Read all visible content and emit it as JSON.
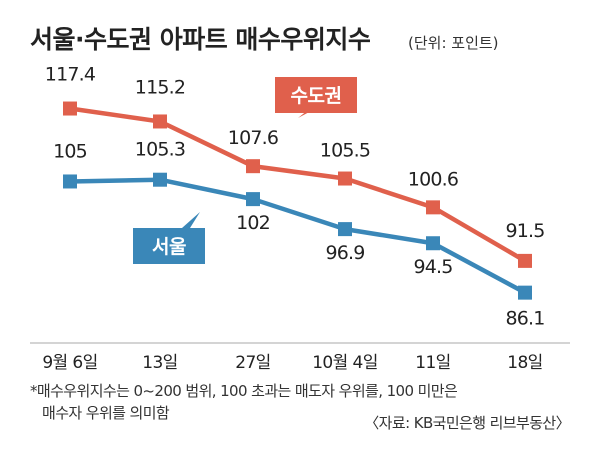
{
  "title": "서울·수도권 아파트 매수우위지수",
  "unit": "(단위: 포인트)",
  "chart_data": {
    "type": "line",
    "categories": [
      "9월 6일",
      "13일",
      "27일",
      "10월 4일",
      "11일",
      "18일"
    ],
    "series": [
      {
        "name": "수도권",
        "values": [
          117.4,
          115.2,
          107.6,
          105.5,
          100.6,
          91.5
        ],
        "labels": [
          "117.4",
          "115.2",
          "107.6",
          "105.5",
          "100.6",
          "91.5"
        ],
        "color": "#e0604c"
      },
      {
        "name": "서울",
        "values": [
          105,
          105.3,
          102,
          96.9,
          94.5,
          86.1
        ],
        "labels": [
          "105",
          "105.3",
          "102",
          "96.9",
          "94.5",
          "86.1"
        ],
        "color": "#3a87b8"
      }
    ],
    "ylim": [
      84,
      118
    ],
    "grid": false,
    "legend": "callouts"
  },
  "footnote_1": "*매수우위지수는 0~200 범위, 100 초과는 매도자 우위를, 100 미만은",
  "footnote_2": "매수자 우위를 의미함",
  "source": "〈자료: KB국민은행 리브부동산〉"
}
